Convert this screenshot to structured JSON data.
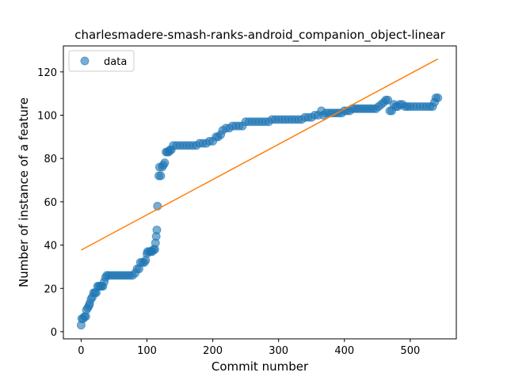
{
  "chart_data": {
    "type": "scatter",
    "title": "charlesmadere-smash-ranks-android_companion_object-linear",
    "xlabel": "Commit number",
    "ylabel": "Number of instance of a feature",
    "xlim": [
      -27,
      570
    ],
    "ylim": [
      -3.3,
      132
    ],
    "xticks": [
      0,
      100,
      200,
      300,
      400,
      500
    ],
    "yticks": [
      0,
      20,
      40,
      60,
      80,
      100,
      120
    ],
    "grid": false,
    "legend_position": "upper-left",
    "series": [
      {
        "name": "data",
        "kind": "scatter",
        "color": "#1f77b4",
        "points": [
          [
            0,
            3
          ],
          [
            1,
            6
          ],
          [
            3,
            6
          ],
          [
            5,
            7
          ],
          [
            7,
            7
          ],
          [
            8,
            10
          ],
          [
            10,
            11
          ],
          [
            12,
            12
          ],
          [
            13,
            13
          ],
          [
            15,
            15
          ],
          [
            17,
            16
          ],
          [
            19,
            18
          ],
          [
            21,
            18
          ],
          [
            23,
            18
          ],
          [
            25,
            21
          ],
          [
            27,
            21
          ],
          [
            29,
            21
          ],
          [
            31,
            21
          ],
          [
            33,
            21
          ],
          [
            35,
            23
          ],
          [
            37,
            25
          ],
          [
            39,
            26
          ],
          [
            42,
            26
          ],
          [
            46,
            26
          ],
          [
            50,
            26
          ],
          [
            54,
            26
          ],
          [
            58,
            26
          ],
          [
            62,
            26
          ],
          [
            66,
            26
          ],
          [
            70,
            26
          ],
          [
            74,
            26
          ],
          [
            78,
            26
          ],
          [
            82,
            27
          ],
          [
            85,
            29
          ],
          [
            88,
            29
          ],
          [
            90,
            32
          ],
          [
            93,
            32
          ],
          [
            96,
            32
          ],
          [
            98,
            33
          ],
          [
            100,
            36
          ],
          [
            101,
            37
          ],
          [
            104,
            37
          ],
          [
            106,
            37
          ],
          [
            108,
            37
          ],
          [
            110,
            38
          ],
          [
            112,
            38
          ],
          [
            113,
            41
          ],
          [
            114,
            44
          ],
          [
            115,
            47
          ],
          [
            116,
            58
          ],
          [
            118,
            72
          ],
          [
            119,
            76
          ],
          [
            121,
            72
          ],
          [
            123,
            76
          ],
          [
            125,
            77
          ],
          [
            127,
            78
          ],
          [
            129,
            83
          ],
          [
            131,
            83
          ],
          [
            133,
            83
          ],
          [
            135,
            84
          ],
          [
            137,
            84
          ],
          [
            140,
            86
          ],
          [
            145,
            86
          ],
          [
            150,
            86
          ],
          [
            155,
            86
          ],
          [
            160,
            86
          ],
          [
            165,
            86
          ],
          [
            170,
            86
          ],
          [
            175,
            86
          ],
          [
            180,
            87
          ],
          [
            185,
            87
          ],
          [
            190,
            87
          ],
          [
            195,
            88
          ],
          [
            200,
            88
          ],
          [
            205,
            90
          ],
          [
            208,
            90
          ],
          [
            212,
            91
          ],
          [
            215,
            93
          ],
          [
            220,
            94
          ],
          [
            225,
            94
          ],
          [
            230,
            95
          ],
          [
            235,
            95
          ],
          [
            240,
            95
          ],
          [
            245,
            95
          ],
          [
            250,
            97
          ],
          [
            255,
            97
          ],
          [
            260,
            97
          ],
          [
            265,
            97
          ],
          [
            270,
            97
          ],
          [
            275,
            97
          ],
          [
            280,
            97
          ],
          [
            285,
            97
          ],
          [
            290,
            98
          ],
          [
            295,
            98
          ],
          [
            300,
            98
          ],
          [
            305,
            98
          ],
          [
            310,
            98
          ],
          [
            315,
            98
          ],
          [
            320,
            98
          ],
          [
            325,
            98
          ],
          [
            330,
            98
          ],
          [
            335,
            98
          ],
          [
            340,
            99
          ],
          [
            345,
            99
          ],
          [
            350,
            99
          ],
          [
            355,
            100
          ],
          [
            360,
            100
          ],
          [
            365,
            102
          ],
          [
            368,
            100
          ],
          [
            372,
            101
          ],
          [
            376,
            101
          ],
          [
            380,
            101
          ],
          [
            384,
            101
          ],
          [
            388,
            101
          ],
          [
            392,
            101
          ],
          [
            396,
            101
          ],
          [
            400,
            102
          ],
          [
            404,
            102
          ],
          [
            408,
            102
          ],
          [
            412,
            103
          ],
          [
            416,
            103
          ],
          [
            420,
            103
          ],
          [
            424,
            103
          ],
          [
            428,
            103
          ],
          [
            432,
            103
          ],
          [
            436,
            103
          ],
          [
            440,
            103
          ],
          [
            444,
            103
          ],
          [
            448,
            103
          ],
          [
            452,
            104
          ],
          [
            456,
            105
          ],
          [
            460,
            106
          ],
          [
            463,
            107
          ],
          [
            466,
            107
          ],
          [
            469,
            102
          ],
          [
            472,
            102
          ],
          [
            475,
            105
          ],
          [
            478,
            104
          ],
          [
            481,
            104
          ],
          [
            484,
            105
          ],
          [
            488,
            105
          ],
          [
            492,
            104
          ],
          [
            496,
            104
          ],
          [
            500,
            104
          ],
          [
            505,
            104
          ],
          [
            510,
            104
          ],
          [
            515,
            104
          ],
          [
            520,
            104
          ],
          [
            525,
            104
          ],
          [
            530,
            104
          ],
          [
            534,
            104
          ],
          [
            537,
            106
          ],
          [
            539,
            108
          ],
          [
            542,
            108
          ]
        ]
      },
      {
        "name": "",
        "kind": "line",
        "color": "#ff7f0e",
        "points": [
          [
            0,
            37.7
          ],
          [
            542,
            126
          ]
        ]
      }
    ]
  }
}
